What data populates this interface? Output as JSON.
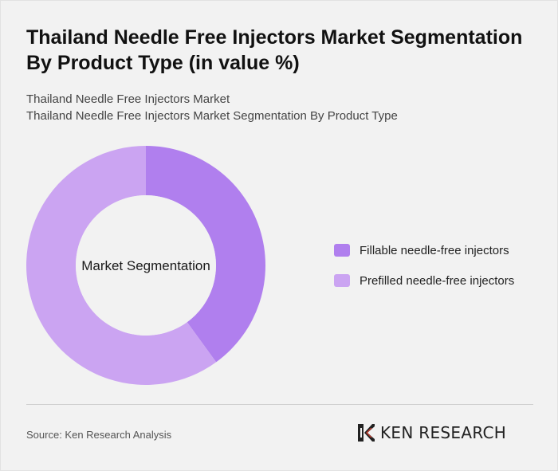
{
  "header": {
    "title": "Thailand Needle Free Injectors Market Segmentation By Product Type (in value %)",
    "subtitle_1": "Thailand Needle Free Injectors Market",
    "subtitle_2": "Thailand Needle Free Injectors Market Segmentation By Product Type"
  },
  "chart_data": {
    "type": "pie",
    "center_label": "Market Segmentation",
    "categories": [
      "Fillable needle-free injectors",
      "Prefilled needle-free injectors"
    ],
    "values": [
      40,
      60
    ],
    "colors": [
      "#b07fee",
      "#cba4f2"
    ],
    "legend_position": "right"
  },
  "footer": {
    "source": "Source: Ken Research Analysis",
    "brand": "KEN RESEARCH"
  },
  "brand_icon": "ken-research-logo-icon"
}
